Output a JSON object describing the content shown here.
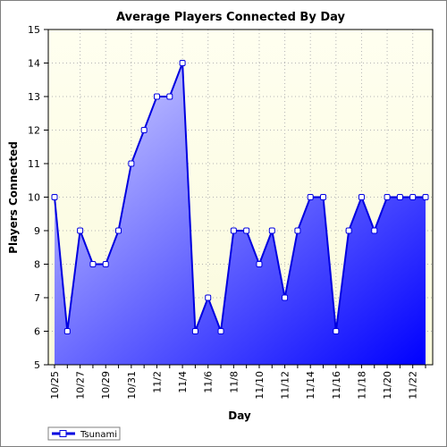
{
  "chart_data": {
    "type": "area",
    "title": "Average Players Connected By Day",
    "xlabel": "Day",
    "ylabel": "Players Connected",
    "ylim": [
      5,
      15
    ],
    "yticks": [
      5,
      6,
      7,
      8,
      9,
      10,
      11,
      12,
      13,
      14,
      15
    ],
    "x": [
      "10/25",
      "10/26",
      "10/27",
      "10/28",
      "10/29",
      "10/30",
      "10/31",
      "11/1",
      "11/2",
      "11/3",
      "11/4",
      "11/5",
      "11/6",
      "11/7",
      "11/8",
      "11/9",
      "11/10",
      "11/11",
      "11/12",
      "11/13",
      "11/14",
      "11/15",
      "11/16",
      "11/17",
      "11/18",
      "11/19",
      "11/20",
      "11/21",
      "11/22",
      "11/23"
    ],
    "xtick_labels": [
      "10/25",
      "10/27",
      "10/29",
      "10/31",
      "11/2",
      "11/4",
      "11/6",
      "11/8",
      "11/10",
      "11/12",
      "11/14",
      "11/16",
      "11/18",
      "11/20",
      "11/22"
    ],
    "grid": true,
    "legend_position": "bottom-left",
    "series": [
      {
        "name": "Tsunami",
        "values": [
          10,
          6,
          9,
          8,
          8,
          9,
          11,
          12,
          13,
          13,
          14,
          6,
          7,
          6,
          9,
          9,
          8,
          9,
          7,
          9,
          10,
          10,
          6,
          9,
          10,
          9,
          10,
          10,
          10,
          10
        ]
      }
    ],
    "colors": {
      "plot_background_top": "#fffff0",
      "plot_background_bottom": "#fafadc",
      "line": "#0000e0",
      "fill_light": "#d8d8ff",
      "fill_dark": "#0000ff"
    }
  }
}
